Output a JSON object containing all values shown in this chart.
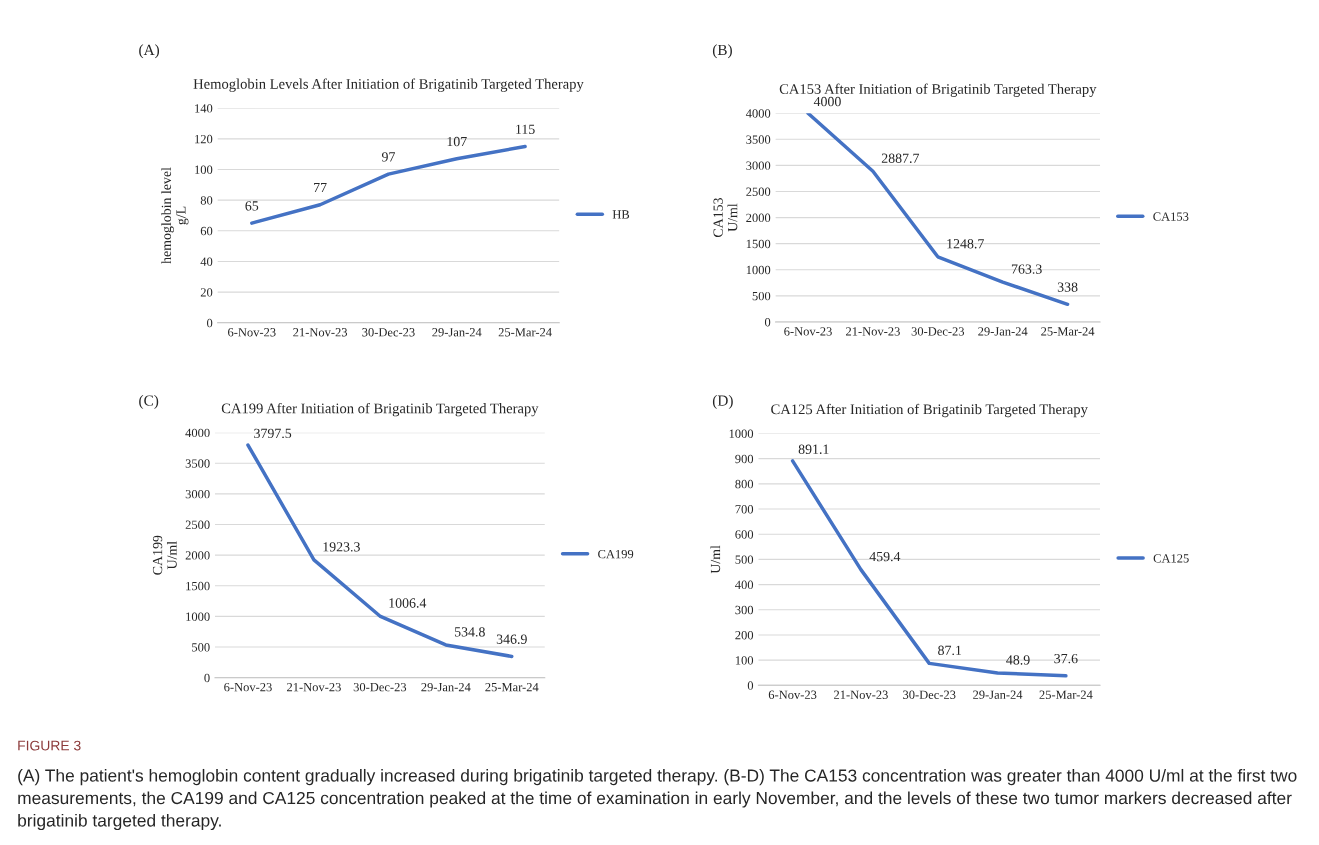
{
  "chart_data": [
    {
      "type": "line",
      "title": "Hemoglobin Levels After Initiation of Brigatinib Targeted Therapy",
      "ylabel": "hemoglobin level\ng/L",
      "categories": [
        "6-Nov-23",
        "21-Nov-23",
        "30-Dec-23",
        "29-Jan-24",
        "25-Mar-24"
      ],
      "series": [
        {
          "name": "HB",
          "color": "#4472c4",
          "values": [
            65,
            77,
            97,
            107,
            115
          ]
        }
      ],
      "ylim": [
        0,
        140
      ],
      "yticks": [
        0,
        20,
        40,
        60,
        80,
        100,
        120,
        140
      ],
      "grid": "y",
      "legend": "right",
      "data_labels": true,
      "annotations": [
        "(A)"
      ]
    },
    {
      "type": "line",
      "title": "CA153 After Initiation of Brigatinib Targeted Therapy",
      "ylabel": "CA153\nU/ml",
      "categories": [
        "6-Nov-23",
        "21-Nov-23",
        "30-Dec-23",
        "29-Jan-24",
        "25-Mar-24"
      ],
      "series": [
        {
          "name": "CA153",
          "color": "#4472c4",
          "values": [
            4000,
            2887.7,
            1248.7,
            763.3,
            338
          ]
        }
      ],
      "ylim": [
        0,
        4000
      ],
      "yticks": [
        0,
        500,
        1000,
        1500,
        2000,
        2500,
        3000,
        3500,
        4000
      ],
      "grid": "y",
      "legend": "right",
      "data_labels": true,
      "annotations": [
        "(B)"
      ]
    },
    {
      "type": "line",
      "title": "CA199 After Initiation of Brigatinib Targeted Therapy",
      "ylabel": "CA199\nU/ml",
      "categories": [
        "6-Nov-23",
        "21-Nov-23",
        "30-Dec-23",
        "29-Jan-24",
        "25-Mar-24"
      ],
      "series": [
        {
          "name": "CA199",
          "color": "#4472c4",
          "values": [
            3797.5,
            1923.3,
            1006.4,
            534.8,
            346.9
          ]
        }
      ],
      "ylim": [
        0,
        4000
      ],
      "yticks": [
        0,
        500,
        1000,
        1500,
        2000,
        2500,
        3000,
        3500,
        4000
      ],
      "grid": "y",
      "legend": "right",
      "data_labels": true,
      "annotations": [
        "(C)"
      ]
    },
    {
      "type": "line",
      "title": "CA125 After Initiation of Brigatinib Targeted Therapy",
      "ylabel": "U/ml",
      "categories": [
        "6-Nov-23",
        "21-Nov-23",
        "30-Dec-23",
        "29-Jan-24",
        "25-Mar-24"
      ],
      "series": [
        {
          "name": "CA125",
          "color": "#4472c4",
          "values": [
            891.1,
            459.4,
            87.1,
            48.9,
            37.6
          ]
        }
      ],
      "ylim": [
        0,
        1000
      ],
      "yticks": [
        0,
        100,
        200,
        300,
        400,
        500,
        600,
        700,
        800,
        900,
        1000
      ],
      "grid": "y",
      "legend": "right",
      "data_labels": true,
      "annotations": [
        "(D)",
        "FIGURE 3",
        "(A) The patient's hemoglobin content gradually increased during brigatinib targeted therapy. (B-D) The CA153 concentration was greater than 4000 U/ml at the first two measurements, the CA199 and CA125 concentration peaked at the time of examination in early November, and the levels of these two tumor markers decreased after brigatinib targeted therapy."
      ]
    }
  ]
}
